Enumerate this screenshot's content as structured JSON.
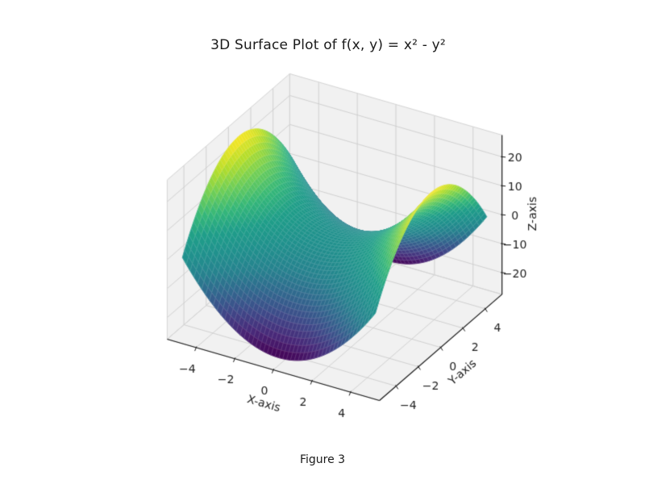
{
  "figure": {
    "caption": "Figure 3",
    "background": "#ffffff"
  },
  "chart_data": {
    "type": "surface",
    "title": "3D Surface Plot of f(x, y) = x² - y²",
    "expression": "x*x - y*y",
    "xlabel": "X-axis",
    "ylabel": "Y-axis",
    "zlabel": "Z-axis",
    "x_range": [
      -5,
      5
    ],
    "y_range": [
      -5,
      5
    ],
    "z_range": [
      -25,
      25
    ],
    "x_ticks": [
      -4,
      -2,
      0,
      2,
      4
    ],
    "y_ticks": [
      -4,
      -2,
      0,
      2,
      4
    ],
    "z_ticks": [
      -20,
      -10,
      0,
      10,
      20
    ],
    "grid": true,
    "mesh_resolution": 50,
    "view": {
      "elev": 30,
      "azim": -60,
      "box_aspect": [
        4,
        4,
        3
      ]
    },
    "colormap": {
      "name": "viridis",
      "stops": [
        [
          0.0,
          "#440154"
        ],
        [
          0.1,
          "#482878"
        ],
        [
          0.2,
          "#3e4a89"
        ],
        [
          0.3,
          "#31688e"
        ],
        [
          0.4,
          "#26828e"
        ],
        [
          0.5,
          "#20918d"
        ],
        [
          0.6,
          "#1f9e89"
        ],
        [
          0.7,
          "#35b779"
        ],
        [
          0.8,
          "#6ece58"
        ],
        [
          0.9,
          "#b5de2b"
        ],
        [
          1.0,
          "#fde725"
        ]
      ]
    },
    "colors": {
      "pane": "#f1f1f1",
      "grid_line": "#cdcdcd",
      "pane_edge": "#d4d4d4",
      "axis_line": "#1a1a1a",
      "tick_label": "#202020",
      "mesh_line": "rgba(255,255,255,0.28)",
      "background": "#ffffff"
    }
  }
}
